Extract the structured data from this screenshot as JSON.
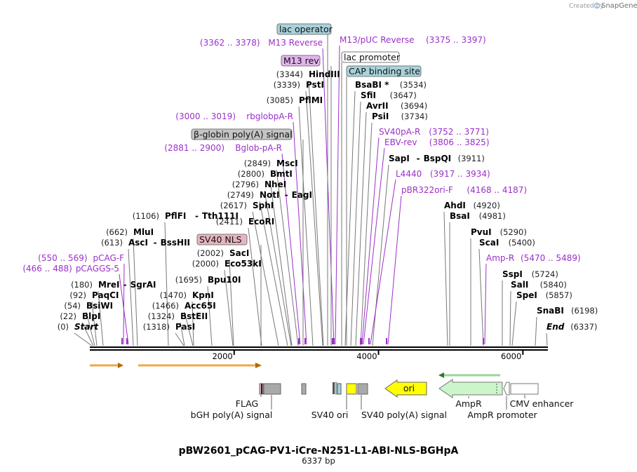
{
  "credit": {
    "prefix": "Created by",
    "brand": "SnapGene"
  },
  "map": {
    "title": "pBW2601_pCAG-PV1-iCre-N251-L1-ABI-NLS-BGHpA",
    "subtitle": "6337 bp",
    "length_bp": 6337,
    "ticks": [
      {
        "bp": 2000,
        "label": "2000"
      },
      {
        "bp": 4000,
        "label": "4000"
      },
      {
        "bp": 6000,
        "label": "6000"
      }
    ]
  },
  "sites": [
    {
      "id": "start",
      "pos": "(0)",
      "name": "Start",
      "bp": 0,
      "italic": true,
      "side": "left"
    },
    {
      "id": "blpi",
      "pos": "(22)",
      "name": "BlpI",
      "bp": 22,
      "side": "left"
    },
    {
      "id": "bsiwi",
      "pos": "(54)",
      "name": "BsiWI",
      "bp": 54,
      "side": "left"
    },
    {
      "id": "paqci",
      "pos": "(92)",
      "name": "PaqCI",
      "bp": 92,
      "side": "left"
    },
    {
      "id": "mrei",
      "pos": "(180)",
      "name": "MreI",
      "name2": "SgrAI",
      "bp": 180,
      "side": "left"
    },
    {
      "id": "asci",
      "pos": "(613)",
      "name": "AscI",
      "name2": "BssHII",
      "bp": 613,
      "side": "left"
    },
    {
      "id": "mlui",
      "pos": "(662)",
      "name": "MluI",
      "bp": 662,
      "side": "left"
    },
    {
      "id": "pflfi",
      "pos": "(1106)",
      "name": "PflFI",
      "name2": "Tth111I",
      "bp": 1106,
      "side": "left"
    },
    {
      "id": "pasi",
      "pos": "(1318)",
      "name": "PasI",
      "bp": 1318,
      "side": "left"
    },
    {
      "id": "bsteii",
      "pos": "(1324)",
      "name": "BstEII",
      "bp": 1324,
      "side": "left"
    },
    {
      "id": "acc65i",
      "pos": "(1466)",
      "name": "Acc65I",
      "bp": 1466,
      "side": "left"
    },
    {
      "id": "kpni",
      "pos": "(1470)",
      "name": "KpnI",
      "bp": 1470,
      "side": "left"
    },
    {
      "id": "bpu10i",
      "pos": "(1695)",
      "name": "Bpu10I",
      "bp": 1695,
      "side": "left"
    },
    {
      "id": "eco53ki",
      "pos": "(2000)",
      "name": "Eco53kI",
      "bp": 2000,
      "side": "left"
    },
    {
      "id": "saci",
      "pos": "(2002)",
      "name": "SacI",
      "bp": 2002,
      "side": "left"
    },
    {
      "id": "ecori",
      "pos": "(2411)",
      "name": "EcoRI",
      "bp": 2411,
      "side": "left"
    },
    {
      "id": "sphi",
      "pos": "(2617)",
      "name": "SphI",
      "bp": 2617,
      "side": "left"
    },
    {
      "id": "noti",
      "pos": "(2749)",
      "name": "NotI",
      "name2": "EagI",
      "bp": 2749,
      "side": "left"
    },
    {
      "id": "nhei",
      "pos": "(2796)",
      "name": "NheI",
      "bp": 2796,
      "side": "left"
    },
    {
      "id": "bmti",
      "pos": "(2800)",
      "name": "BmtI",
      "bp": 2800,
      "side": "left"
    },
    {
      "id": "msci",
      "pos": "(2849)",
      "name": "MscI",
      "bp": 2849,
      "side": "left"
    },
    {
      "id": "pflmi",
      "pos": "(3085)",
      "name": "PflMI",
      "bp": 3085,
      "side": "left"
    },
    {
      "id": "psti",
      "pos": "(3339)",
      "name": "PstI",
      "bp": 3339,
      "side": "left"
    },
    {
      "id": "hindiii",
      "pos": "(3344)",
      "name": "HindIII",
      "bp": 3344,
      "side": "left"
    },
    {
      "id": "bsabi",
      "pos": "(3534)",
      "name": "BsaBI *",
      "bp": 3534,
      "side": "right"
    },
    {
      "id": "sfii",
      "pos": "(3647)",
      "name": "SfiI",
      "bp": 3647,
      "side": "right"
    },
    {
      "id": "avrii",
      "pos": "(3694)",
      "name": "AvrII",
      "bp": 3694,
      "side": "right"
    },
    {
      "id": "psii",
      "pos": "(3734)",
      "name": "PsiI",
      "bp": 3734,
      "side": "right"
    },
    {
      "id": "sapi",
      "pos": "(3911)",
      "name": "SapI",
      "name2": "BspQI",
      "bp": 3911,
      "side": "right"
    },
    {
      "id": "ahdi",
      "pos": "(4920)",
      "name": "AhdI",
      "bp": 4920,
      "side": "right"
    },
    {
      "id": "bsai",
      "pos": "(4981)",
      "name": "BsaI",
      "bp": 4981,
      "side": "right"
    },
    {
      "id": "pvui",
      "pos": "(5290)",
      "name": "PvuI",
      "bp": 5290,
      "side": "right"
    },
    {
      "id": "scai",
      "pos": "(5400)",
      "name": "ScaI",
      "bp": 5400,
      "side": "right"
    },
    {
      "id": "sspi",
      "pos": "(5724)",
      "name": "SspI",
      "bp": 5724,
      "side": "right"
    },
    {
      "id": "sali",
      "pos": "(5840)",
      "name": "SalI",
      "bp": 5840,
      "side": "right"
    },
    {
      "id": "spei",
      "pos": "(5857)",
      "name": "SpeI",
      "bp": 5857,
      "side": "right"
    },
    {
      "id": "snabi",
      "pos": "(6198)",
      "name": "SnaBI",
      "bp": 6198,
      "side": "right"
    },
    {
      "id": "end",
      "pos": "(6337)",
      "name": "End",
      "bp": 6337,
      "italic": true,
      "side": "right"
    }
  ],
  "primers": [
    {
      "id": "pcaggs5",
      "pos": "(466 .. 488)",
      "name": "pCAGGS-5",
      "bp": 477,
      "side": "left"
    },
    {
      "id": "pcagf",
      "pos": "(550 .. 569)",
      "name": "pCAG-F",
      "bp": 560,
      "side": "left"
    },
    {
      "id": "bglobpar",
      "pos": "(2881 .. 2900)",
      "name": "Bglob-pA-R",
      "bp": 2890,
      "side": "left"
    },
    {
      "id": "rbglobpar",
      "pos": "(3000 .. 3019)",
      "name": "rbglobpA-R",
      "bp": 3010,
      "side": "left"
    },
    {
      "id": "m13rev_p",
      "pos": "(3362 .. 3378)",
      "name": "M13 Reverse",
      "bp": 3370,
      "side": "left"
    },
    {
      "id": "m13puc",
      "pos": "(3375 .. 3397)",
      "name": "M13/pUC Reverse",
      "bp": 3386,
      "side": "right"
    },
    {
      "id": "sv40par",
      "pos": "(3752 .. 3771)",
      "name": "SV40pA-R",
      "bp": 3761,
      "side": "right"
    },
    {
      "id": "ebvrev",
      "pos": "(3806 .. 3825)",
      "name": "EBV-rev",
      "bp": 3815,
      "side": "right"
    },
    {
      "id": "l4440",
      "pos": "(3917 .. 3934)",
      "name": "L4440",
      "bp": 3925,
      "side": "right"
    },
    {
      "id": "pbr322",
      "pos": "(4168 .. 4187)",
      "name": "pBR322ori-F",
      "bp": 4177,
      "side": "right"
    },
    {
      "id": "ampr_p",
      "pos": "(5470 .. 5489)",
      "name": "Amp-R",
      "bp": 5480,
      "side": "right"
    }
  ],
  "boxed_features": [
    {
      "id": "lac_operator",
      "name": "lac operator",
      "bp": 3360,
      "color": "#a8d3dc"
    },
    {
      "id": "m13_rev",
      "name": "M13 rev",
      "bp": 3368,
      "color": "#e3b3ee"
    },
    {
      "id": "lac_promoter",
      "name": "lac promoter",
      "bp": 3400,
      "color": "#ffffff"
    },
    {
      "id": "cap_site",
      "name": "CAP binding site",
      "bp": 3420,
      "color": "#a8d3dc"
    },
    {
      "id": "bglobin_pa",
      "name": "β-globin poly(A) signal",
      "bp": 2950,
      "color": "#c4c4c4"
    },
    {
      "id": "sv40_nls",
      "name": "SV40 NLS",
      "bp": 2390,
      "color": "#e8b4bf"
    }
  ],
  "track_features": [
    {
      "id": "flag",
      "name": "FLAG"
    },
    {
      "id": "bgh_pa",
      "name": "bGH poly(A) signal"
    },
    {
      "id": "sv40_ori",
      "name": "SV40 ori"
    },
    {
      "id": "sv40_pa",
      "name": "SV40 poly(A) signal"
    },
    {
      "id": "ori",
      "name": "ori"
    },
    {
      "id": "ampr",
      "name": "AmpR"
    },
    {
      "id": "ampr_promoter",
      "name": "AmpR promoter"
    },
    {
      "id": "cmv_enhancer",
      "name": "CMV enhancer"
    }
  ],
  "colors": {
    "backbone": "#000000",
    "site_line": "#666666",
    "primer": "#9b30c8",
    "orf_arrow": "#f0a848",
    "ori": "#ffff00",
    "ampr": "#ccf5cc",
    "gray_feature": "#a9a9a9",
    "sv40_ori": "#ffff00",
    "nls": "#e8b4bf"
  }
}
